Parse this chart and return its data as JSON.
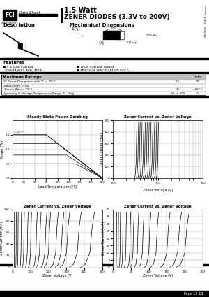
{
  "title_line1": "1.5 Watt",
  "title_line2": "ZENER DIODES (3.3V to 200V)",
  "fci_text": "FCI",
  "data_sheet_text": "Data Sheet",
  "series_text": "1N5913...5956 Series",
  "description_title": "Description",
  "mech_dim_title": "Mechanical Dimensions",
  "features_title": "Features",
  "feature1a": "■ 5 & 10% VOLTAGE",
  "feature1b": "  TOLERANCES AVAILABLE",
  "feature2": "■ WIDE VOLTAGE RANGE",
  "feature3": "■ MEETS UL SPECIFICATION 94V-0",
  "max_ratings_title": "Maximum Ratings",
  "units_label": "Units",
  "row1_label": "DC Power Dissipation with TL = 75°C",
  "row1_val": "1.5",
  "row1_unit": "W",
  "row2_label": "Lead Length = 3/4\"",
  "row2_val": "",
  "row2_unit": "",
  "row3_label": "  Derate Above 75°C",
  "row3_val": "12",
  "row3_unit": "mW/°C",
  "row4_label": "Operating & Storage Temperature Range, TL, Tstg",
  "row4_val": "-65 to 200",
  "row4_unit": "°C",
  "graph1_title": "Steady State Power Derating",
  "graph1_xlabel": "Lead Temperature (°C)",
  "graph1_ylabel": "Power (W)",
  "graph2_title": "Zener Current vs. Zener Voltage",
  "graph2_xlabel": "Zener Voltage (V)",
  "graph2_ylabel": "Zener Current (mA)",
  "graph3_title": "Zener Current vs. Zener Voltage",
  "graph3_xlabel": "Zener Voltage (V)",
  "graph3_ylabel": "Zener Current (mA)",
  "graph4_title": "Zener Current vs. Zener Voltage",
  "graph4_xlabel": "Zener Voltage (V)",
  "graph4_ylabel": "Zener Current (mA)",
  "bg_color": "#ffffff",
  "page_number": "Page 12-13",
  "jedec_line1": "JEDEC",
  "jedec_line2": "DO-41",
  "dim1": ".265",
  "dim2": ".185",
  "dim3": "1.00 Min",
  "dim4": ".026",
  "dim5": ".100",
  "dim6": ".031 typ."
}
